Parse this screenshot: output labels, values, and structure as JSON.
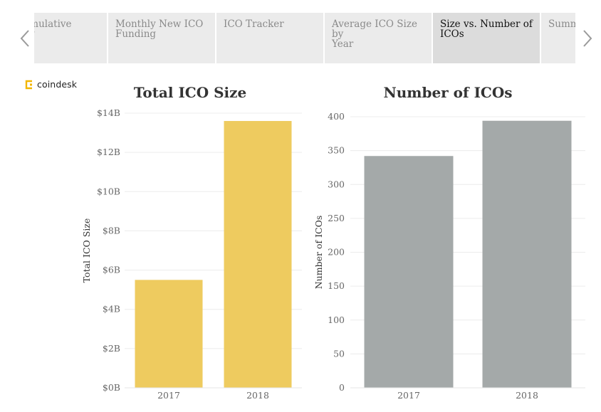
{
  "tabs": [
    {
      "label": "e Cumulative\nnding",
      "active": false
    },
    {
      "label": "Monthly New ICO\nFunding",
      "active": false
    },
    {
      "label": "ICO Tracker",
      "active": false
    },
    {
      "label": "Average ICO Size by\nYear",
      "active": false
    },
    {
      "label": "Size vs. Number of\nICOs",
      "active": true
    },
    {
      "label": "Summ",
      "active": false
    }
  ],
  "nav": {
    "prev_icon": "chevron-left-icon",
    "next_icon": "chevron-right-icon"
  },
  "logo": {
    "text": "coindesk",
    "icon": "coindesk-logo-icon",
    "color": "#f2b600"
  },
  "chart_data": [
    {
      "type": "bar",
      "title": "Total ICO Size",
      "xlabel": "",
      "ylabel": "Total ICO Size",
      "categories": [
        "2017",
        "2018"
      ],
      "values": [
        5500000000,
        13600000000
      ],
      "ylim": [
        0,
        14000000000
      ],
      "yticks": [
        0,
        2000000000,
        4000000000,
        6000000000,
        8000000000,
        10000000000,
        12000000000,
        14000000000
      ],
      "ytick_labels": [
        "$0B",
        "$2B",
        "$4B",
        "$6B",
        "$8B",
        "$10B",
        "$12B",
        "$14B"
      ],
      "color": "#eecb5f",
      "grid": true
    },
    {
      "type": "bar",
      "title": "Number of ICOs",
      "xlabel": "",
      "ylabel": "Number of ICOs",
      "categories": [
        "2017",
        "2018"
      ],
      "values": [
        342,
        394
      ],
      "ylim": [
        0,
        400
      ],
      "yticks": [
        0,
        50,
        100,
        150,
        200,
        250,
        300,
        350,
        400
      ],
      "ytick_labels": [
        "0",
        "50",
        "100",
        "150",
        "200",
        "250",
        "300",
        "350",
        "400"
      ],
      "color": "#a4a9a9",
      "grid": true
    }
  ]
}
